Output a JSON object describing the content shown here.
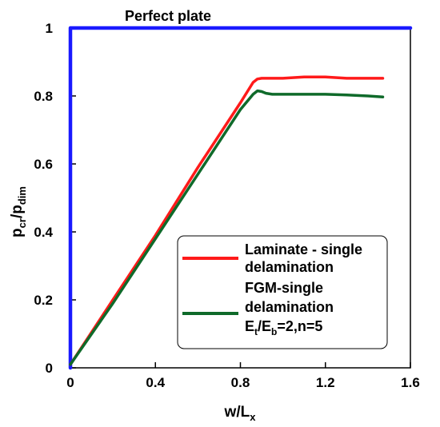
{
  "chart_data": {
    "type": "line",
    "xlabel_main": "w/L",
    "xlabel_sub": "x",
    "ylabel_main": "p",
    "ylabel_sub1": "cr",
    "ylabel_mid": "/p",
    "ylabel_sub2": "dim",
    "xlim": [
      0,
      1.6
    ],
    "ylim": [
      0,
      1
    ],
    "xticks": [
      0,
      0.4,
      0.8,
      1.2,
      1.6
    ],
    "xtick_labels": [
      "0",
      "0.4",
      "0.8",
      "1.2",
      "1.6"
    ],
    "yticks": [
      0,
      0.2,
      0.4,
      0.6,
      0.8,
      1
    ],
    "ytick_labels": [
      "0",
      "0.2",
      "0.4",
      "0.6",
      "0.8",
      "1"
    ],
    "annotation": "Perfect plate",
    "series": [
      {
        "color": "#1a1aff",
        "x": [
          0,
          0,
          1.6
        ],
        "y": [
          0,
          1,
          1
        ]
      },
      {
        "color": "#ff1a1a",
        "x": [
          0,
          0.2,
          0.4,
          0.6,
          0.8,
          0.84,
          0.86,
          0.88,
          0.9,
          1.0,
          1.1,
          1.2,
          1.3,
          1.4,
          1.47
        ],
        "y": [
          0.01,
          0.2,
          0.39,
          0.59,
          0.78,
          0.82,
          0.84,
          0.85,
          0.852,
          0.852,
          0.856,
          0.856,
          0.852,
          0.852,
          0.852
        ]
      },
      {
        "color": "#0f6a2a",
        "x": [
          0,
          0.2,
          0.4,
          0.6,
          0.8,
          0.86,
          0.88,
          0.9,
          0.92,
          0.95,
          1.0,
          1.1,
          1.2,
          1.3,
          1.4,
          1.47
        ],
        "y": [
          0.01,
          0.19,
          0.38,
          0.57,
          0.76,
          0.805,
          0.815,
          0.813,
          0.808,
          0.805,
          0.805,
          0.805,
          0.805,
          0.803,
          0.8,
          0.797
        ]
      }
    ],
    "legend": {
      "placement": "bottom-right",
      "entries": [
        {
          "color": "#ff1a1a",
          "line1": "Laminate - single",
          "line2": "delamination"
        },
        {
          "color": "#0f6a2a",
          "line1": "FGM-single",
          "line2": "delamination",
          "line3_main1": "E",
          "line3_sub1": "t",
          "line3_mid": "/E",
          "line3_sub2": "b",
          "line3_tail": "=2,n=5"
        }
      ]
    }
  }
}
